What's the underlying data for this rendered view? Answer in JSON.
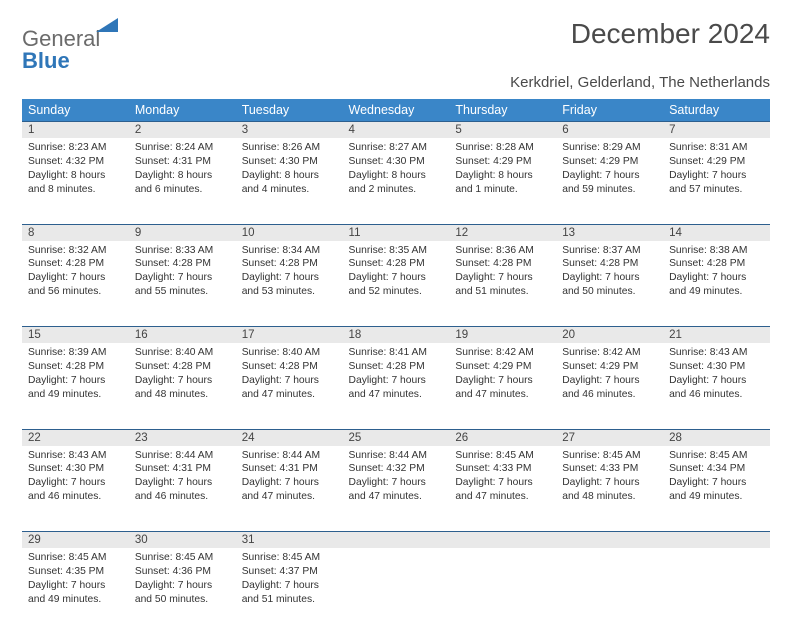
{
  "logo": {
    "word1": "General",
    "word2": "Blue"
  },
  "title": "December 2024",
  "location": "Kerkdriel, Gelderland, The Netherlands",
  "colors": {
    "header_bg": "#3a86c8",
    "header_text": "#ffffff",
    "daynum_bg": "#e9e9e9",
    "daynum_border": "#2d5f8e",
    "text": "#333333",
    "title": "#4a4a4a",
    "logo_gray": "#6b6b6b",
    "logo_blue": "#2f76b8"
  },
  "day_headers": [
    "Sunday",
    "Monday",
    "Tuesday",
    "Wednesday",
    "Thursday",
    "Friday",
    "Saturday"
  ],
  "weeks": [
    [
      {
        "n": "1",
        "sunrise": "Sunrise: 8:23 AM",
        "sunset": "Sunset: 4:32 PM",
        "day1": "Daylight: 8 hours",
        "day2": "and 8 minutes."
      },
      {
        "n": "2",
        "sunrise": "Sunrise: 8:24 AM",
        "sunset": "Sunset: 4:31 PM",
        "day1": "Daylight: 8 hours",
        "day2": "and 6 minutes."
      },
      {
        "n": "3",
        "sunrise": "Sunrise: 8:26 AM",
        "sunset": "Sunset: 4:30 PM",
        "day1": "Daylight: 8 hours",
        "day2": "and 4 minutes."
      },
      {
        "n": "4",
        "sunrise": "Sunrise: 8:27 AM",
        "sunset": "Sunset: 4:30 PM",
        "day1": "Daylight: 8 hours",
        "day2": "and 2 minutes."
      },
      {
        "n": "5",
        "sunrise": "Sunrise: 8:28 AM",
        "sunset": "Sunset: 4:29 PM",
        "day1": "Daylight: 8 hours",
        "day2": "and 1 minute."
      },
      {
        "n": "6",
        "sunrise": "Sunrise: 8:29 AM",
        "sunset": "Sunset: 4:29 PM",
        "day1": "Daylight: 7 hours",
        "day2": "and 59 minutes."
      },
      {
        "n": "7",
        "sunrise": "Sunrise: 8:31 AM",
        "sunset": "Sunset: 4:29 PM",
        "day1": "Daylight: 7 hours",
        "day2": "and 57 minutes."
      }
    ],
    [
      {
        "n": "8",
        "sunrise": "Sunrise: 8:32 AM",
        "sunset": "Sunset: 4:28 PM",
        "day1": "Daylight: 7 hours",
        "day2": "and 56 minutes."
      },
      {
        "n": "9",
        "sunrise": "Sunrise: 8:33 AM",
        "sunset": "Sunset: 4:28 PM",
        "day1": "Daylight: 7 hours",
        "day2": "and 55 minutes."
      },
      {
        "n": "10",
        "sunrise": "Sunrise: 8:34 AM",
        "sunset": "Sunset: 4:28 PM",
        "day1": "Daylight: 7 hours",
        "day2": "and 53 minutes."
      },
      {
        "n": "11",
        "sunrise": "Sunrise: 8:35 AM",
        "sunset": "Sunset: 4:28 PM",
        "day1": "Daylight: 7 hours",
        "day2": "and 52 minutes."
      },
      {
        "n": "12",
        "sunrise": "Sunrise: 8:36 AM",
        "sunset": "Sunset: 4:28 PM",
        "day1": "Daylight: 7 hours",
        "day2": "and 51 minutes."
      },
      {
        "n": "13",
        "sunrise": "Sunrise: 8:37 AM",
        "sunset": "Sunset: 4:28 PM",
        "day1": "Daylight: 7 hours",
        "day2": "and 50 minutes."
      },
      {
        "n": "14",
        "sunrise": "Sunrise: 8:38 AM",
        "sunset": "Sunset: 4:28 PM",
        "day1": "Daylight: 7 hours",
        "day2": "and 49 minutes."
      }
    ],
    [
      {
        "n": "15",
        "sunrise": "Sunrise: 8:39 AM",
        "sunset": "Sunset: 4:28 PM",
        "day1": "Daylight: 7 hours",
        "day2": "and 49 minutes."
      },
      {
        "n": "16",
        "sunrise": "Sunrise: 8:40 AM",
        "sunset": "Sunset: 4:28 PM",
        "day1": "Daylight: 7 hours",
        "day2": "and 48 minutes."
      },
      {
        "n": "17",
        "sunrise": "Sunrise: 8:40 AM",
        "sunset": "Sunset: 4:28 PM",
        "day1": "Daylight: 7 hours",
        "day2": "and 47 minutes."
      },
      {
        "n": "18",
        "sunrise": "Sunrise: 8:41 AM",
        "sunset": "Sunset: 4:28 PM",
        "day1": "Daylight: 7 hours",
        "day2": "and 47 minutes."
      },
      {
        "n": "19",
        "sunrise": "Sunrise: 8:42 AM",
        "sunset": "Sunset: 4:29 PM",
        "day1": "Daylight: 7 hours",
        "day2": "and 47 minutes."
      },
      {
        "n": "20",
        "sunrise": "Sunrise: 8:42 AM",
        "sunset": "Sunset: 4:29 PM",
        "day1": "Daylight: 7 hours",
        "day2": "and 46 minutes."
      },
      {
        "n": "21",
        "sunrise": "Sunrise: 8:43 AM",
        "sunset": "Sunset: 4:30 PM",
        "day1": "Daylight: 7 hours",
        "day2": "and 46 minutes."
      }
    ],
    [
      {
        "n": "22",
        "sunrise": "Sunrise: 8:43 AM",
        "sunset": "Sunset: 4:30 PM",
        "day1": "Daylight: 7 hours",
        "day2": "and 46 minutes."
      },
      {
        "n": "23",
        "sunrise": "Sunrise: 8:44 AM",
        "sunset": "Sunset: 4:31 PM",
        "day1": "Daylight: 7 hours",
        "day2": "and 46 minutes."
      },
      {
        "n": "24",
        "sunrise": "Sunrise: 8:44 AM",
        "sunset": "Sunset: 4:31 PM",
        "day1": "Daylight: 7 hours",
        "day2": "and 47 minutes."
      },
      {
        "n": "25",
        "sunrise": "Sunrise: 8:44 AM",
        "sunset": "Sunset: 4:32 PM",
        "day1": "Daylight: 7 hours",
        "day2": "and 47 minutes."
      },
      {
        "n": "26",
        "sunrise": "Sunrise: 8:45 AM",
        "sunset": "Sunset: 4:33 PM",
        "day1": "Daylight: 7 hours",
        "day2": "and 47 minutes."
      },
      {
        "n": "27",
        "sunrise": "Sunrise: 8:45 AM",
        "sunset": "Sunset: 4:33 PM",
        "day1": "Daylight: 7 hours",
        "day2": "and 48 minutes."
      },
      {
        "n": "28",
        "sunrise": "Sunrise: 8:45 AM",
        "sunset": "Sunset: 4:34 PM",
        "day1": "Daylight: 7 hours",
        "day2": "and 49 minutes."
      }
    ],
    [
      {
        "n": "29",
        "sunrise": "Sunrise: 8:45 AM",
        "sunset": "Sunset: 4:35 PM",
        "day1": "Daylight: 7 hours",
        "day2": "and 49 minutes."
      },
      {
        "n": "30",
        "sunrise": "Sunrise: 8:45 AM",
        "sunset": "Sunset: 4:36 PM",
        "day1": "Daylight: 7 hours",
        "day2": "and 50 minutes."
      },
      {
        "n": "31",
        "sunrise": "Sunrise: 8:45 AM",
        "sunset": "Sunset: 4:37 PM",
        "day1": "Daylight: 7 hours",
        "day2": "and 51 minutes."
      },
      null,
      null,
      null,
      null
    ]
  ]
}
